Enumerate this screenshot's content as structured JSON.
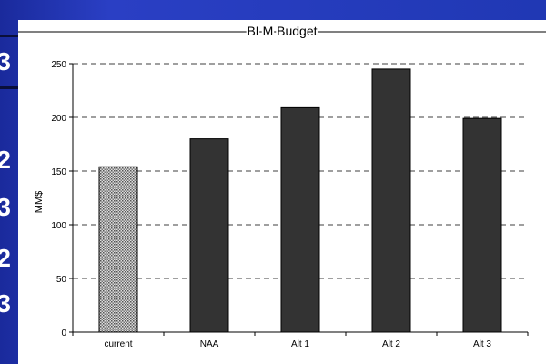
{
  "slide_edge_glyphs": [
    "3",
    "2",
    "3",
    "2",
    "3"
  ],
  "colors": {
    "background": "#2034b8",
    "bar_dark": "#333333",
    "bar_pattern": "#8c8c8c",
    "axis": "#000000",
    "grid": "#000000"
  },
  "chart_data": {
    "type": "bar",
    "title": "BLM Budget",
    "xlabel": "",
    "ylabel": "MM$",
    "categories": [
      "current",
      "NAA",
      "Alt 1",
      "Alt 2",
      "Alt 3"
    ],
    "values": [
      154,
      180,
      209,
      245,
      199
    ],
    "ylim": [
      0,
      250
    ],
    "yticks": [
      0,
      50,
      100,
      150,
      200,
      250
    ],
    "grid": "dashed horizontal",
    "legend": "none",
    "bar_fill": [
      "dotted-pattern",
      "solid",
      "solid",
      "solid",
      "solid"
    ]
  }
}
